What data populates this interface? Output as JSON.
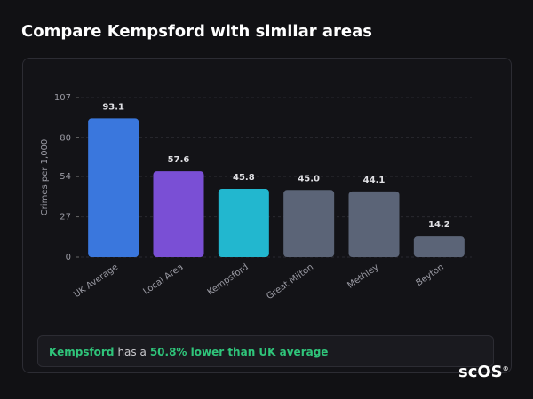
{
  "header": {
    "title": "Compare Kempsford with similar areas"
  },
  "chart_data": {
    "type": "bar",
    "y_label": "Crimes per 1,000",
    "categories": [
      "UK Average",
      "Local Area",
      "Kempsford",
      "Great Milton",
      "Methley",
      "Beyton"
    ],
    "values": [
      93.1,
      57.6,
      45.8,
      45.0,
      44.1,
      14.2
    ],
    "value_labels": [
      "93.1",
      "57.6",
      "45.8",
      "45.0",
      "44.1",
      "14.2"
    ],
    "colors": [
      "#3a77dd",
      "#7a4fd5",
      "#22b7cf",
      "#5b6477",
      "#5b6477",
      "#5b6477"
    ],
    "ylim": [
      0,
      107
    ],
    "yticks": [
      0,
      27,
      54,
      80,
      107
    ],
    "grid": true
  },
  "summary": {
    "area": "Kempsford",
    "text": "has a",
    "highlight": "50.8% lower than UK average"
  },
  "logo": {
    "text": "scOS",
    "mark": "®"
  }
}
